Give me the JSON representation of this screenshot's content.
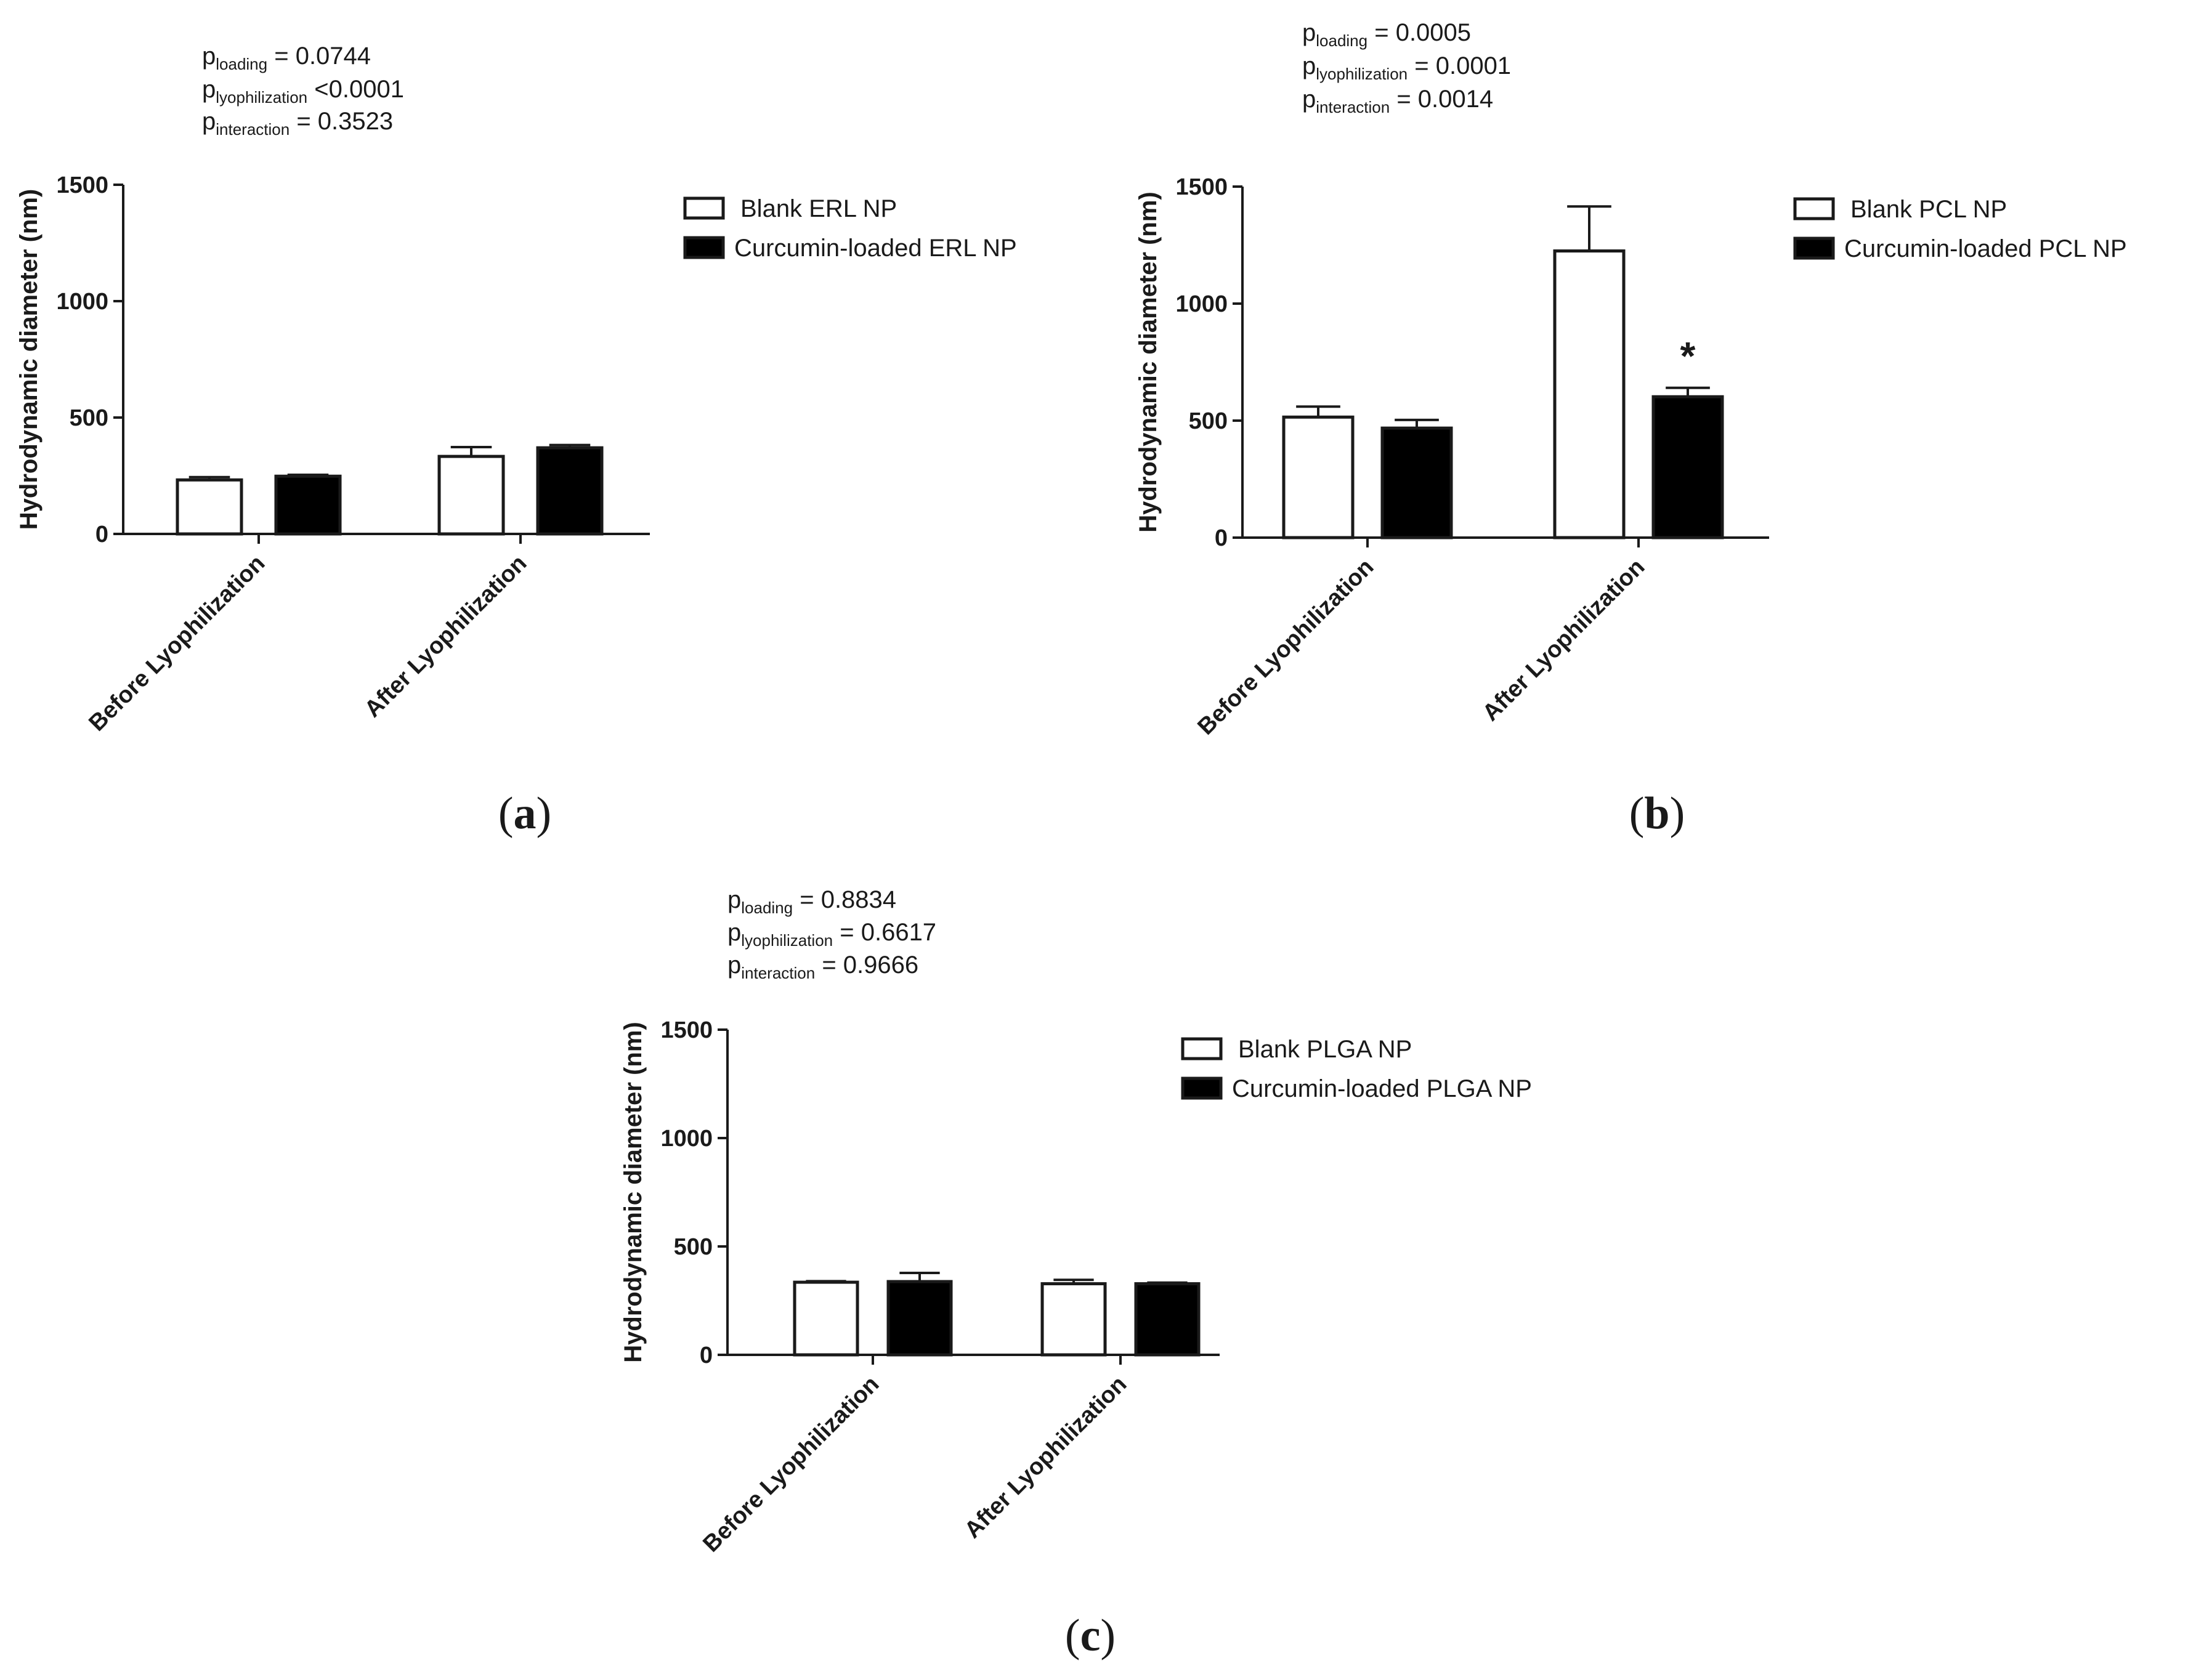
{
  "chart_data": [
    {
      "type": "bar",
      "panel": "a",
      "ylabel": "Hydrodynamic diameter (nm)",
      "ylim": [
        0,
        1500
      ],
      "yticks": [
        0,
        500,
        1000,
        1500
      ],
      "categories": [
        "Before Lyophilization",
        "After Lyophilization"
      ],
      "series": [
        {
          "name": "Blank ERL NP",
          "fill": "#ffffff",
          "values": [
            232,
            333
          ],
          "errors": [
            12,
            40
          ]
        },
        {
          "name": "Curcumin-loaded ERL NP",
          "fill": "#000000",
          "values": [
            248,
            370
          ],
          "errors": [
            6,
            12
          ]
        }
      ],
      "significance": [
        null,
        null
      ],
      "pvalues": [
        {
          "label": "p",
          "sub": "loading",
          "text": " = 0.0744"
        },
        {
          "label": "p",
          "sub": "lyophilization",
          "text": " <0.0001"
        },
        {
          "label": "p",
          "sub": "interaction",
          "text": " = 0.3523"
        }
      ],
      "legend_position": "right"
    },
    {
      "type": "bar",
      "panel": "b",
      "ylabel": "Hydrodynamic diameter (nm)",
      "ylim": [
        0,
        1500
      ],
      "yticks": [
        0,
        500,
        1000,
        1500
      ],
      "categories": [
        "Before Lyophilization",
        "After Lyophilization"
      ],
      "series": [
        {
          "name": "Blank PCL NP",
          "fill": "#ffffff",
          "values": [
            515,
            1225
          ],
          "errors": [
            45,
            190
          ]
        },
        {
          "name": "Curcumin-loaded PCL NP",
          "fill": "#000000",
          "values": [
            468,
            602
          ],
          "errors": [
            35,
            38
          ]
        }
      ],
      "significance": [
        null,
        "*"
      ],
      "pvalues": [
        {
          "label": "p",
          "sub": "loading",
          "text": " = 0.0005"
        },
        {
          "label": "p",
          "sub": "lyophilization",
          "text": " = 0.0001"
        },
        {
          "label": "p",
          "sub": "interaction",
          "text": " = 0.0014"
        }
      ],
      "legend_position": "right"
    },
    {
      "type": "bar",
      "panel": "c",
      "ylabel": "Hydrodynamic diameter (nm)",
      "ylim": [
        0,
        1500
      ],
      "yticks": [
        0,
        500,
        1000,
        1500
      ],
      "categories": [
        "Before Lyophilization",
        "After Lyophilization"
      ],
      "series": [
        {
          "name": "Blank PLGA NP",
          "fill": "#ffffff",
          "values": [
            335,
            328
          ],
          "errors": [
            5,
            18
          ]
        },
        {
          "name": "Curcumin-loaded PLGA NP",
          "fill": "#000000",
          "values": [
            338,
            328
          ],
          "errors": [
            40,
            5
          ]
        }
      ],
      "significance": [
        null,
        null
      ],
      "pvalues": [
        {
          "label": "p",
          "sub": "loading",
          "text": " = 0.8834"
        },
        {
          "label": "p",
          "sub": "lyophilization",
          "text": " = 0.6617"
        },
        {
          "label": "p",
          "sub": "interaction",
          "text": " = 0.9666"
        }
      ],
      "legend_position": "right"
    }
  ],
  "panel_labels": [
    {
      "open": "(",
      "letter": "a",
      "close": ")"
    },
    {
      "open": "(",
      "letter": "b",
      "close": ")"
    },
    {
      "open": "(",
      "letter": "c",
      "close": ")"
    }
  ]
}
